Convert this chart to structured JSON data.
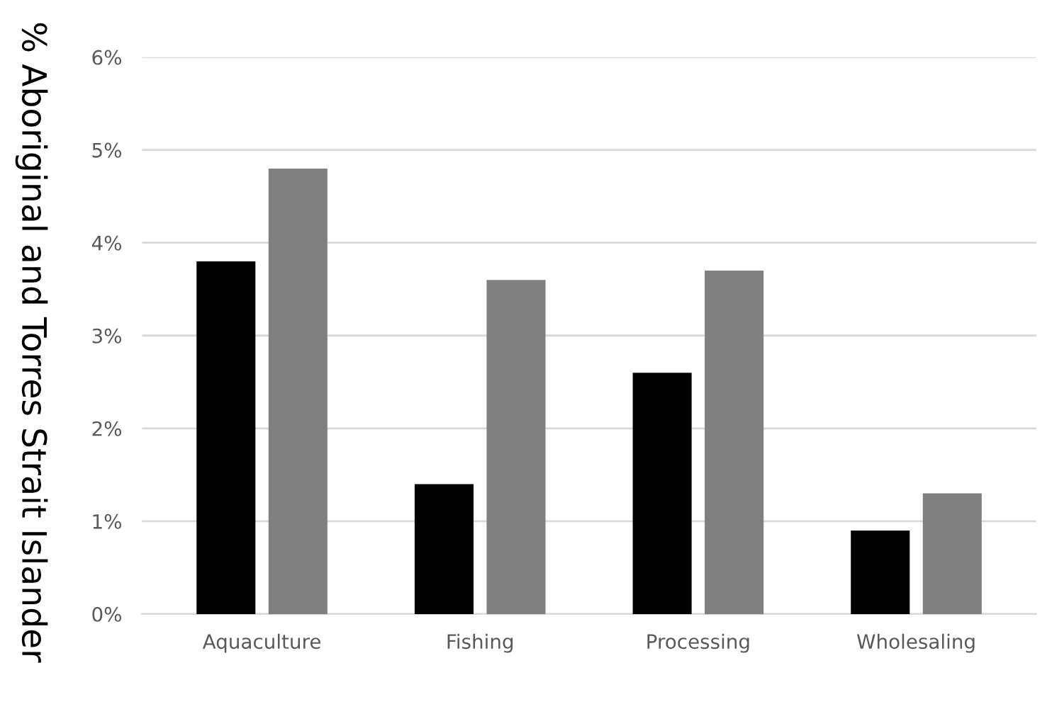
{
  "chart_data": {
    "type": "bar",
    "ylabel": "% Aboriginal and Torres Strait Islander",
    "categories": [
      "Aquaculture",
      "Fishing",
      "Processing",
      "Wholesaling"
    ],
    "series": [
      {
        "color": "#000000",
        "values": [
          3.8,
          1.4,
          2.6,
          0.9
        ]
      },
      {
        "color": "#808080",
        "values": [
          4.8,
          3.6,
          3.7,
          1.3
        ]
      }
    ],
    "ylim": [
      0,
      6
    ],
    "yticks": [
      {
        "value": 0,
        "label": "0%"
      },
      {
        "value": 1,
        "label": "1%"
      },
      {
        "value": 2,
        "label": "2%"
      },
      {
        "value": 3,
        "label": "3%"
      },
      {
        "value": 4,
        "label": "4%"
      },
      {
        "value": 5,
        "label": "5%"
      },
      {
        "value": 6,
        "label": "6%"
      }
    ],
    "grid": "y",
    "legend": false
  }
}
